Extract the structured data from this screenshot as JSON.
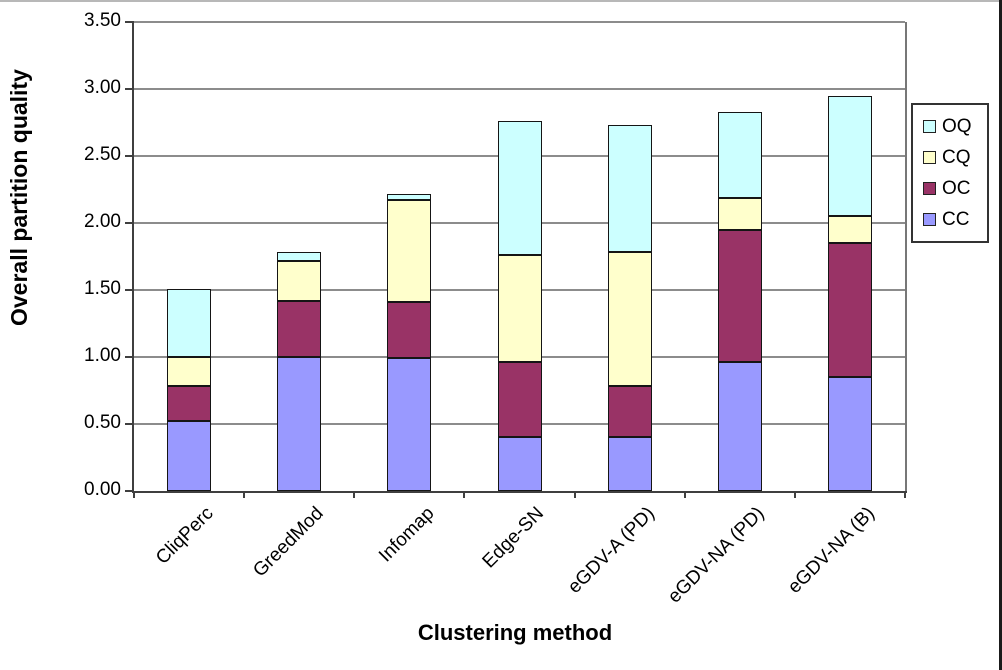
{
  "chart_data": {
    "type": "bar",
    "stacked": true,
    "title": "",
    "xlabel": "Clustering method",
    "ylabel": "Overall partition quality",
    "categories": [
      "CliqPerc",
      "GreedMod",
      "Infomap",
      "Edge-SN",
      "eGDV-A (PD)",
      "eGDV-NA (PD)",
      "eGDV-NA (B)"
    ],
    "series": [
      {
        "name": "CC",
        "values": [
          0.52,
          1.0,
          0.99,
          0.4,
          0.4,
          0.96,
          0.85
        ]
      },
      {
        "name": "OC",
        "values": [
          0.26,
          0.42,
          0.42,
          0.56,
          0.38,
          0.99,
          1.0
        ]
      },
      {
        "name": "CQ",
        "values": [
          0.22,
          0.3,
          0.76,
          0.8,
          1.0,
          0.24,
          0.2
        ]
      },
      {
        "name": "OQ",
        "values": [
          0.51,
          0.06,
          0.05,
          1.0,
          0.95,
          0.64,
          0.9
        ]
      }
    ],
    "stack_totals": [
      1.51,
      1.78,
      2.22,
      2.76,
      2.73,
      2.83,
      2.95
    ],
    "ylim": [
      0,
      3.5
    ],
    "yticks": [
      {
        "value": 0.0,
        "label": "0.00"
      },
      {
        "value": 0.5,
        "label": "0.50"
      },
      {
        "value": 1.0,
        "label": "1.00"
      },
      {
        "value": 1.5,
        "label": "1.50"
      },
      {
        "value": 2.0,
        "label": "2.00"
      },
      {
        "value": 2.5,
        "label": "2.50"
      },
      {
        "value": 3.0,
        "label": "3.00"
      },
      {
        "value": 3.5,
        "label": "3.50"
      }
    ],
    "grid": true,
    "legend": {
      "position": "right",
      "entries": [
        "OQ",
        "CQ",
        "OC",
        "CC"
      ]
    },
    "colors": {
      "CC": "#9999FF",
      "OC": "#993366",
      "CQ": "#FFFFCC",
      "OQ": "#CCFFFF",
      "gridline": "#8C8C8C",
      "axis": "#3F3F3F",
      "plot_border": "#777777",
      "segment_border": "#151515",
      "background": "#FFFFFF"
    }
  }
}
